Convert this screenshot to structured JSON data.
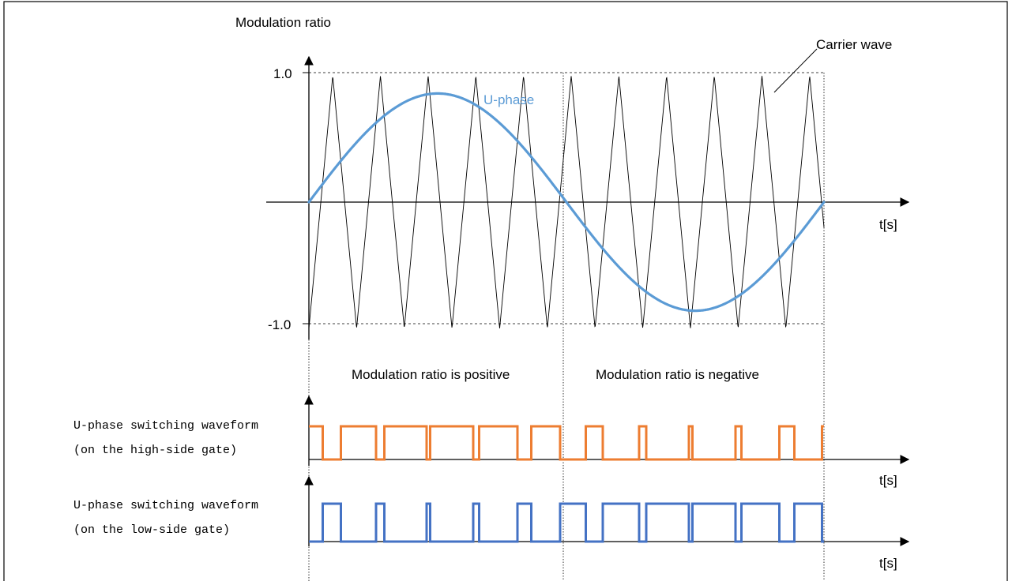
{
  "title_y_axis": "Modulation ratio",
  "carrier_label": "Carrier wave",
  "u_phase_label": "U-phase",
  "tick_top": "1.0",
  "tick_bottom": "-1.0",
  "t_label_top": "t[s]",
  "t_label_high": "t[s]",
  "t_label_low": "t[s]",
  "region_positive": "Modulation ratio is positive",
  "region_negative": "Modulation ratio is negative",
  "high_label_1": "U-phase switching waveform",
  "high_label_2": "(on the high-side gate)",
  "low_label_1": "U-phase switching waveform",
  "low_label_2": "(on the low-side gate)",
  "colors": {
    "u_phase": "#5b9bd5",
    "high_side": "#ed7d31",
    "low_side": "#4472c4",
    "axis": "#000000"
  },
  "waveform": {
    "u_phase_amplitude": 0.86,
    "carrier_amplitude": 1.0,
    "carrier_cycles": 10.8
  }
}
